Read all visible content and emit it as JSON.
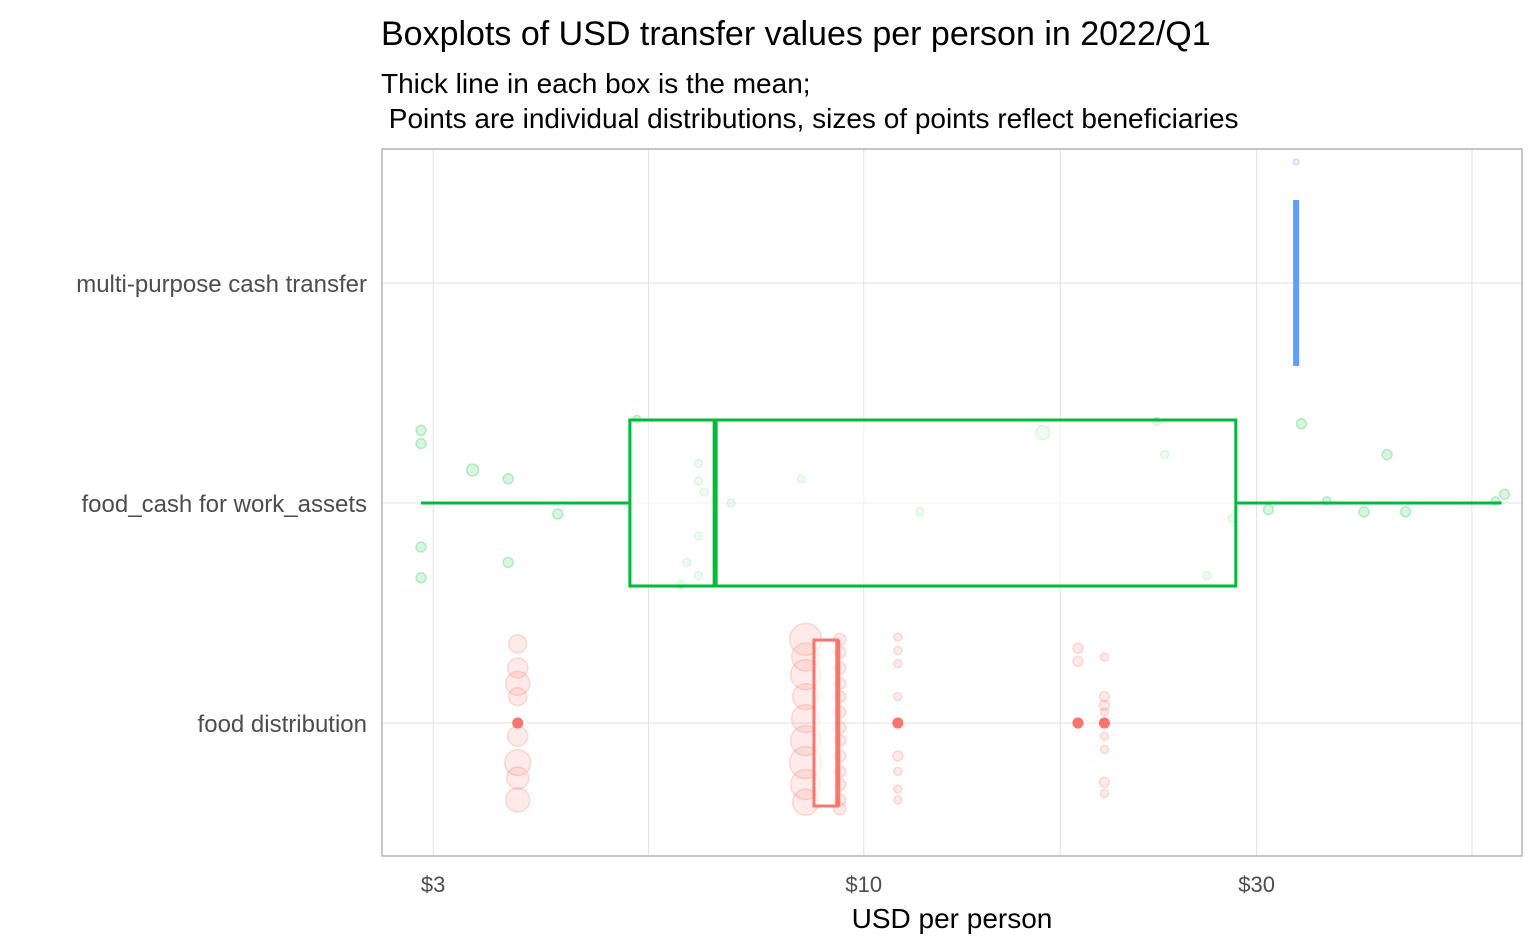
{
  "chart_data": {
    "type": "boxplot",
    "title": "Boxplots of USD transfer values per person in 2022/Q1",
    "subtitle_lines": [
      "Thick line in each box is the mean;",
      " Points are individual distributions, sizes of points reflect beneficiaries"
    ],
    "xlabel": "USD per person",
    "ylabel": "",
    "x_scale": "log10",
    "xlim": [
      2.6,
      63
    ],
    "x_ticks": [
      {
        "value": 3,
        "label": "$3"
      },
      {
        "value": 10,
        "label": "$10"
      },
      {
        "value": 30,
        "label": "$30"
      }
    ],
    "x_minor_grid": [
      5.477,
      17.32,
      54.77
    ],
    "grid": true,
    "legend": "none",
    "categories": [
      "multi-purpose cash transfer",
      "food_cash for work_assets",
      "food distribution"
    ],
    "series": [
      {
        "category": "multi-purpose cash transfer",
        "color": "#619cff",
        "whisker_low": 33.5,
        "q1": 33.5,
        "mean": 33.5,
        "q3": 33.5,
        "whisker_high": 33.5,
        "points": [
          [
            33.5,
            0.55,
            3
          ]
        ]
      },
      {
        "category": "food_cash for work_assets",
        "color": "#00ba38",
        "whisker_low": 2.9,
        "q1": 5.2,
        "mean": 6.6,
        "q3": 28.3,
        "whisker_high": 59.5,
        "points": [
          [
            2.9,
            0.33,
            5
          ],
          [
            2.9,
            0.27,
            5
          ],
          [
            3.35,
            0.15,
            6
          ],
          [
            3.7,
            0.11,
            5
          ],
          [
            4.25,
            -0.05,
            5
          ],
          [
            2.9,
            -0.2,
            5
          ],
          [
            2.9,
            -0.34,
            5
          ],
          [
            3.7,
            -0.27,
            5
          ],
          [
            5.3,
            0.38,
            4
          ],
          [
            6.3,
            0.18,
            4
          ],
          [
            6.3,
            0.1,
            4
          ],
          [
            6.4,
            0.05,
            4
          ],
          [
            6.9,
            0.0,
            4
          ],
          [
            8.4,
            0.11,
            4
          ],
          [
            6.3,
            -0.15,
            4
          ],
          [
            6.3,
            -0.33,
            4
          ],
          [
            6.1,
            -0.27,
            4
          ],
          [
            6.0,
            -0.37,
            4
          ],
          [
            11.7,
            -0.04,
            4
          ],
          [
            16.5,
            0.32,
            7
          ],
          [
            22.7,
            0.37,
            4
          ],
          [
            23.2,
            0.22,
            4
          ],
          [
            26.1,
            -0.33,
            4
          ],
          [
            28.0,
            -0.07,
            4
          ],
          [
            34.0,
            0.36,
            5
          ],
          [
            31.0,
            -0.03,
            5
          ],
          [
            36.5,
            0.01,
            4
          ],
          [
            40.5,
            -0.04,
            5
          ],
          [
            43.2,
            0.22,
            5
          ],
          [
            45.5,
            -0.04,
            5
          ],
          [
            58.5,
            0.01,
            4
          ],
          [
            60.0,
            0.04,
            5
          ]
        ]
      },
      {
        "category": "food distribution",
        "color": "#f8766d",
        "whisker_low": 8.7,
        "q1": 8.7,
        "mean": 9.3,
        "q3": 9.3,
        "whisker_high": 9.3,
        "points": [
          [
            3.8,
            0.36,
            9
          ],
          [
            3.8,
            0.25,
            10
          ],
          [
            3.8,
            0.18,
            12
          ],
          [
            3.8,
            0.12,
            9
          ],
          [
            3.8,
            0.0,
            5
          ],
          [
            3.8,
            -0.06,
            10
          ],
          [
            3.8,
            -0.18,
            13
          ],
          [
            3.8,
            -0.25,
            11
          ],
          [
            3.8,
            -0.35,
            12
          ],
          [
            8.5,
            0.38,
            16
          ],
          [
            8.5,
            0.3,
            14
          ],
          [
            8.5,
            0.22,
            15
          ],
          [
            8.5,
            0.12,
            13
          ],
          [
            8.5,
            0.02,
            14
          ],
          [
            8.5,
            -0.08,
            15
          ],
          [
            8.5,
            -0.18,
            16
          ],
          [
            8.5,
            -0.28,
            15
          ],
          [
            8.5,
            -0.36,
            13
          ],
          [
            9.35,
            0.38,
            6
          ],
          [
            9.35,
            0.32,
            6
          ],
          [
            9.35,
            0.25,
            6
          ],
          [
            9.35,
            0.18,
            6
          ],
          [
            9.35,
            0.12,
            6
          ],
          [
            9.35,
            0.05,
            6
          ],
          [
            9.35,
            -0.02,
            6
          ],
          [
            9.35,
            -0.08,
            6
          ],
          [
            9.35,
            -0.15,
            6
          ],
          [
            9.35,
            -0.22,
            6
          ],
          [
            9.35,
            -0.28,
            6
          ],
          [
            9.35,
            -0.35,
            6
          ],
          [
            9.35,
            -0.39,
            6
          ],
          [
            11.0,
            0.39,
            4
          ],
          [
            11.0,
            0.33,
            4
          ],
          [
            11.0,
            0.27,
            4
          ],
          [
            11.0,
            0.12,
            4
          ],
          [
            11.0,
            0.0,
            5
          ],
          [
            11.0,
            -0.15,
            5
          ],
          [
            11.0,
            -0.22,
            4
          ],
          [
            11.0,
            -0.35,
            4
          ],
          [
            11.0,
            -0.3,
            4
          ],
          [
            18.2,
            0.34,
            5
          ],
          [
            18.2,
            0.28,
            5
          ],
          [
            18.2,
            0.0,
            5
          ],
          [
            19.6,
            0.3,
            4
          ],
          [
            19.6,
            0.12,
            5
          ],
          [
            19.6,
            0.08,
            5
          ],
          [
            19.6,
            0.05,
            4
          ],
          [
            19.6,
            0.0,
            5
          ],
          [
            19.6,
            -0.06,
            4
          ],
          [
            19.6,
            -0.12,
            4
          ],
          [
            19.6,
            -0.27,
            5
          ],
          [
            19.6,
            -0.32,
            4
          ]
        ],
        "highlight_points": [
          [
            3.8,
            0.0
          ],
          [
            11.0,
            0.0
          ],
          [
            18.2,
            0.0
          ],
          [
            19.6,
            0.0
          ]
        ]
      }
    ]
  }
}
